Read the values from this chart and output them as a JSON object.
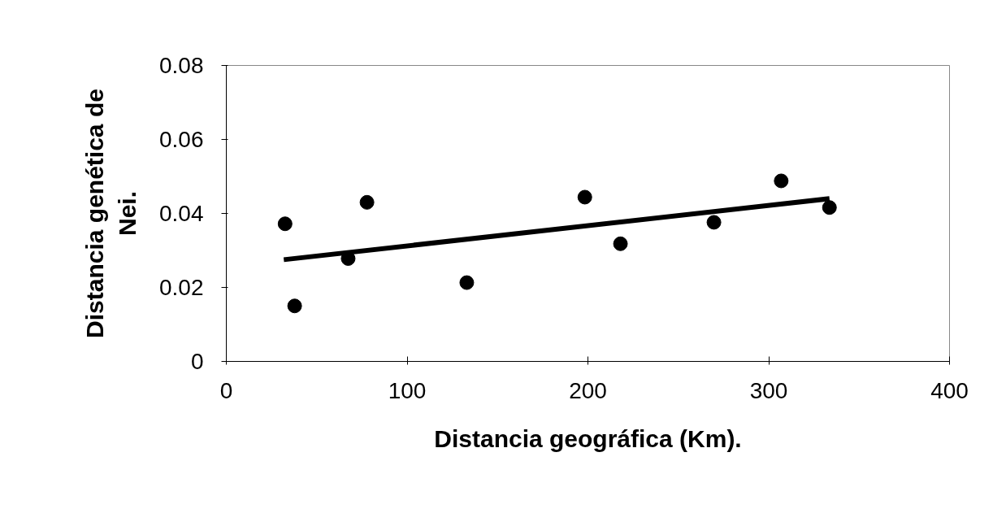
{
  "chart_data": {
    "type": "scatter",
    "xlabel": "Distancia geográfica (Km).",
    "ylabel": "Distancia genética de Nei.",
    "x": [
      32.5,
      37.8,
      67.4,
      77.8,
      133,
      198.3,
      218,
      269.7,
      306.9,
      333.6
    ],
    "series": [
      {
        "color": "#000000",
        "values": [
          0.0372,
          0.015,
          0.0278,
          0.043,
          0.0213,
          0.0444,
          0.0318,
          0.0376,
          0.0488,
          0.0416
        ]
      },
      {
        "type": "line",
        "marker": "none",
        "color": "#000000",
        "x": [
          31.8,
          333.6
        ],
        "values": [
          0.0275,
          0.044
        ]
      }
    ],
    "marker": "circle",
    "xlim": [
      0,
      400
    ],
    "ylim": [
      0,
      0.08
    ],
    "xticks": [
      0,
      100,
      200,
      300,
      400
    ],
    "yticks": [
      0,
      {
        "value": 0.02,
        "label": "0.02"
      },
      {
        "value": 0.04,
        "label": "0.04"
      },
      {
        "value": 0.06,
        "label": "0.06"
      },
      {
        "value": 0.08,
        "label": "0.08"
      }
    ],
    "grid": false
  }
}
